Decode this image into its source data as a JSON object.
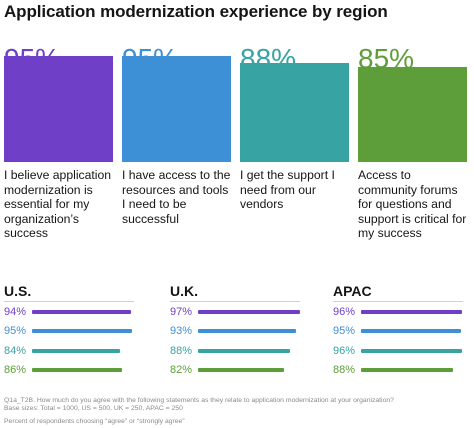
{
  "title": "Application modernization experience by region",
  "colors": [
    "#6f3fc8",
    "#3d8fd6",
    "#38a3a3",
    "#5e9e3a"
  ],
  "chart_data": [
    {
      "type": "bar",
      "categories": [
        "I believe application modernization is essential for my organization’s success",
        "I have access to the resources and tools I need to be successful",
        "I get the support I need from our vendors",
        "Access to community forums for questions and support is critical for my success"
      ],
      "value_labels": [
        "95%",
        "95%",
        "88%",
        "85%"
      ],
      "values": [
        95,
        95,
        88,
        85
      ],
      "ylim": [
        0,
        100
      ]
    },
    {
      "type": "bar",
      "orientation": "horizontal",
      "groups": [
        {
          "name": "U.S.",
          "labels": [
            "94%",
            "95%",
            "84%",
            "86%"
          ],
          "values": [
            94,
            95,
            84,
            86
          ]
        },
        {
          "name": "U.K.",
          "labels": [
            "97%",
            "93%",
            "88%",
            "82%"
          ],
          "values": [
            97,
            93,
            88,
            82
          ]
        },
        {
          "name": "APAC",
          "labels": [
            "96%",
            "95%",
            "96%",
            "88%"
          ],
          "values": [
            96,
            95,
            96,
            88
          ]
        }
      ],
      "xlim": [
        0,
        100
      ]
    }
  ],
  "footnotes": [
    "Q1a_T2B. How much do you agree with the following statements as they relate to application modernization at your organization?",
    "Base sizes: Total = 1000, US = 500, UK = 250, APAC = 250",
    "Percent of respondents choosing “agree” or “strongly agree”"
  ]
}
